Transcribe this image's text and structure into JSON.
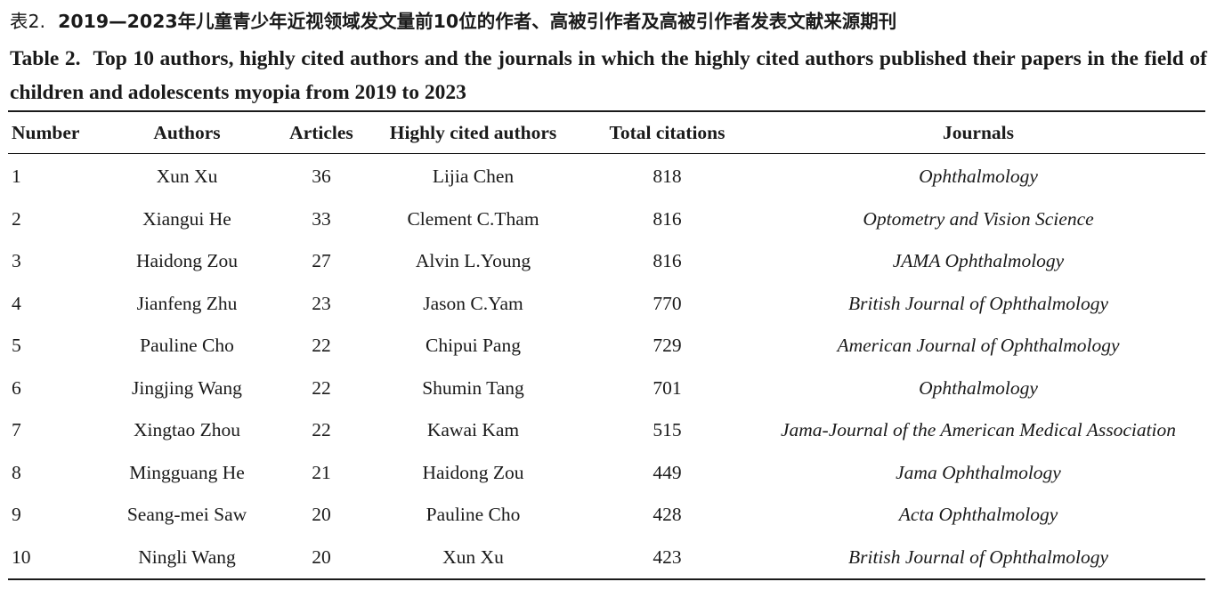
{
  "caption": {
    "cn_label": "表2.",
    "cn_text": "2019—2023年儿童青少年近视领域发文量前10位的作者、高被引作者及高被引作者发表文献来源期刊",
    "en_label": "Table 2.",
    "en_text": "Top 10 authors, highly cited authors and the journals in which the highly cited authors published their papers in the field of children and adolescents myopia from 2019 to 2023"
  },
  "table": {
    "headers": {
      "number": "Number",
      "authors": "Authors",
      "articles": "Articles",
      "highly_cited": "Highly cited authors",
      "citations": "Total citations",
      "journals": "Journals"
    },
    "rows": [
      {
        "number": "1",
        "author": "Xun Xu",
        "articles": "36",
        "cited_author": "Lijia Chen",
        "citations": "818",
        "journal": "Ophthalmology"
      },
      {
        "number": "2",
        "author": "Xiangui He",
        "articles": "33",
        "cited_author": "Clement C.Tham",
        "citations": "816",
        "journal": "Optometry and Vision Science"
      },
      {
        "number": "3",
        "author": "Haidong Zou",
        "articles": "27",
        "cited_author": "Alvin L.Young",
        "citations": "816",
        "journal": "JAMA Ophthalmology"
      },
      {
        "number": "4",
        "author": "Jianfeng Zhu",
        "articles": "23",
        "cited_author": "Jason C.Yam",
        "citations": "770",
        "journal": "British Journal of Ophthalmology"
      },
      {
        "number": "5",
        "author": "Pauline Cho",
        "articles": "22",
        "cited_author": "Chipui Pang",
        "citations": "729",
        "journal": "American Journal of Ophthalmology"
      },
      {
        "number": "6",
        "author": "Jingjing Wang",
        "articles": "22",
        "cited_author": "Shumin Tang",
        "citations": "701",
        "journal": "Ophthalmology"
      },
      {
        "number": "7",
        "author": "Xingtao Zhou",
        "articles": "22",
        "cited_author": "Kawai Kam",
        "citations": "515",
        "journal": "Jama-Journal of the American Medical Association"
      },
      {
        "number": "8",
        "author": "Mingguang He",
        "articles": "21",
        "cited_author": "Haidong Zou",
        "citations": "449",
        "journal": "Jama Ophthalmology"
      },
      {
        "number": "9",
        "author": "Seang-mei Saw",
        "articles": "20",
        "cited_author": "Pauline Cho",
        "citations": "428",
        "journal": "Acta Ophthalmology"
      },
      {
        "number": "10",
        "author": "Ningli Wang",
        "articles": "20",
        "cited_author": "Xun Xu",
        "citations": "423",
        "journal": "British Journal of Ophthalmology"
      }
    ]
  }
}
